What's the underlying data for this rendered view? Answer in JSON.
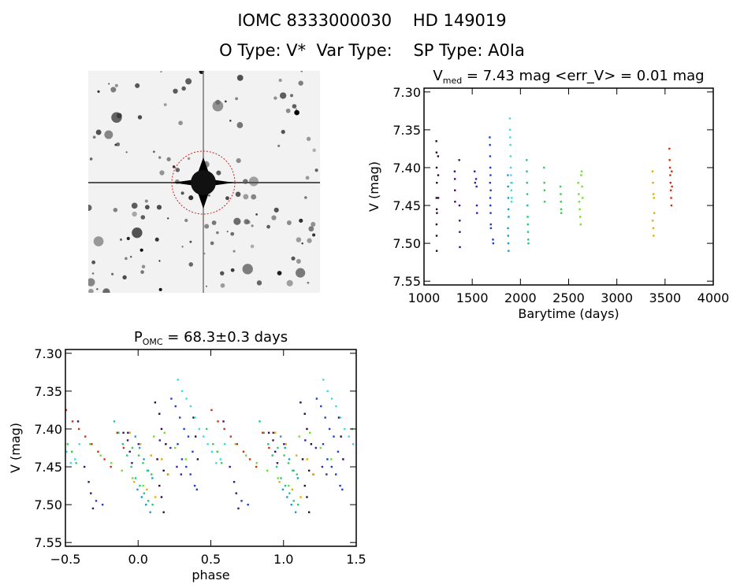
{
  "header": {
    "line1": "IOMC 8333000030    HD 149019",
    "line2": "O Type: V*  Var Type:    SP Type: A0Ia"
  },
  "image_panel": {
    "description_icon": "sky-image-star-field",
    "marker_color": "#d02020"
  },
  "chart_data": [
    {
      "type": "scatter",
      "title_main": "V",
      "title_sub": "med",
      "title_rest": " = 7.43 mag <err_V> = 0.01 mag",
      "xlabel": "Barytime (days)",
      "ylabel": "V (mag)",
      "xlim": [
        1000,
        4000
      ],
      "ylim": [
        7.55,
        7.3
      ],
      "xticks": [
        "1000",
        "1500",
        "2000",
        "2500",
        "3000",
        "3500",
        "4000"
      ],
      "yticks": [
        "7.30",
        "7.35",
        "7.40",
        "7.45",
        "7.50",
        "7.55"
      ],
      "grid": false,
      "color_by": "time (rainbow)",
      "groups": [
        {
          "color": "#2a0a3a",
          "points": [
            [
              1128,
              7.365
            ],
            [
              1130,
              7.38
            ],
            [
              1131,
              7.4
            ],
            [
              1133,
              7.42
            ],
            [
              1129,
              7.44
            ],
            [
              1132,
              7.455
            ],
            [
              1134,
              7.46
            ],
            [
              1130,
              7.475
            ],
            [
              1131,
              7.49
            ],
            [
              1132,
              7.51
            ],
            [
              1146,
              7.385
            ],
            [
              1147,
              7.41
            ],
            [
              1148,
              7.44
            ]
          ]
        },
        {
          "color": "#3a1078",
          "points": [
            [
              1318,
              7.405
            ],
            [
              1320,
              7.415
            ],
            [
              1321,
              7.43
            ],
            [
              1322,
              7.445
            ],
            [
              1365,
              7.39
            ],
            [
              1368,
              7.45
            ],
            [
              1370,
              7.47
            ],
            [
              1371,
              7.485
            ],
            [
              1372,
              7.505
            ]
          ]
        },
        {
          "color": "#3a20a8",
          "points": [
            [
              1525,
              7.405
            ],
            [
              1530,
              7.42
            ],
            [
              1540,
              7.415
            ],
            [
              1545,
              7.425
            ],
            [
              1548,
              7.45
            ],
            [
              1550,
              7.46
            ]
          ]
        },
        {
          "color": "#1840d0",
          "points": [
            [
              1682,
              7.36
            ],
            [
              1684,
              7.37
            ],
            [
              1686,
              7.385
            ],
            [
              1688,
              7.4
            ],
            [
              1690,
              7.41
            ],
            [
              1685,
              7.42
            ],
            [
              1692,
              7.43
            ],
            [
              1687,
              7.44
            ],
            [
              1689,
              7.45
            ],
            [
              1691,
              7.46
            ],
            [
              1693,
              7.475
            ],
            [
              1694,
              7.48
            ],
            [
              1715,
              7.495
            ],
            [
              1718,
              7.5
            ]
          ]
        },
        {
          "color": "#2098d8",
          "points": [
            [
              1870,
              7.41
            ],
            [
              1872,
              7.425
            ],
            [
              1874,
              7.44
            ],
            [
              1876,
              7.455
            ],
            [
              1878,
              7.465
            ],
            [
              1871,
              7.48
            ],
            [
              1873,
              7.49
            ],
            [
              1875,
              7.5
            ],
            [
              1877,
              7.51
            ]
          ]
        },
        {
          "color": "#30e0e0",
          "points": [
            [
              1890,
              7.335
            ],
            [
              1892,
              7.35
            ],
            [
              1894,
              7.36
            ],
            [
              1896,
              7.37
            ],
            [
              1898,
              7.385
            ],
            [
              1900,
              7.4
            ],
            [
              1902,
              7.41
            ],
            [
              1904,
              7.42
            ],
            [
              1906,
              7.43
            ],
            [
              1908,
              7.445
            ],
            [
              1910,
              7.44
            ],
            [
              1912,
              7.42
            ]
          ]
        },
        {
          "color": "#20c880",
          "points": [
            [
              2065,
              7.39
            ],
            [
              2067,
              7.405
            ],
            [
              2069,
              7.42
            ],
            [
              2071,
              7.435
            ],
            [
              2073,
              7.45
            ],
            [
              2075,
              7.465
            ],
            [
              2077,
              7.475
            ],
            [
              2079,
              7.485
            ],
            [
              2081,
              7.495
            ],
            [
              2083,
              7.5
            ]
          ]
        },
        {
          "color": "#30d050",
          "points": [
            [
              2245,
              7.4
            ],
            [
              2248,
              7.42
            ],
            [
              2250,
              7.43
            ],
            [
              2252,
              7.445
            ],
            [
              2415,
              7.425
            ],
            [
              2418,
              7.435
            ],
            [
              2420,
              7.445
            ],
            [
              2422,
              7.455
            ],
            [
              2424,
              7.46
            ]
          ]
        },
        {
          "color": "#70e030",
          "points": [
            [
              2600,
              7.42
            ],
            [
              2605,
              7.435
            ],
            [
              2610,
              7.445
            ],
            [
              2615,
              7.455
            ],
            [
              2620,
              7.465
            ],
            [
              2625,
              7.475
            ],
            [
              2630,
              7.41
            ],
            [
              2635,
              7.405
            ],
            [
              2640,
              7.425
            ],
            [
              2645,
              7.44
            ]
          ]
        },
        {
          "color": "#e0b000",
          "points": [
            [
              3370,
              7.405
            ],
            [
              3375,
              7.42
            ],
            [
              3380,
              7.435
            ],
            [
              3385,
              7.44
            ],
            [
              3372,
              7.47
            ],
            [
              3378,
              7.48
            ],
            [
              3382,
              7.49
            ],
            [
              3388,
              7.46
            ]
          ]
        },
        {
          "color": "#d03010",
          "points": [
            [
              3545,
              7.375
            ],
            [
              3548,
              7.39
            ],
            [
              3551,
              7.4
            ],
            [
              3554,
              7.41
            ],
            [
              3557,
              7.42
            ],
            [
              3560,
              7.43
            ],
            [
              3563,
              7.44
            ],
            [
              3566,
              7.45
            ],
            [
              3569,
              7.405
            ],
            [
              3572,
              7.425
            ]
          ]
        }
      ]
    },
    {
      "type": "scatter",
      "title_main": "P",
      "title_sub": "OMC",
      "title_rest": " = 68.3±0.3 days",
      "period_days": 68.3,
      "xlabel": "phase",
      "ylabel": "V (mag)",
      "xlim": [
        -0.5,
        1.5
      ],
      "ylim": [
        7.55,
        7.3
      ],
      "xticks": [
        "-0.5",
        "0.0",
        "0.5",
        "1.0",
        "1.5"
      ],
      "yticks": [
        "7.30",
        "7.35",
        "7.40",
        "7.45",
        "7.50",
        "7.55"
      ],
      "grid": false,
      "points_source": "same observations as Barytime plot folded with period"
    }
  ]
}
